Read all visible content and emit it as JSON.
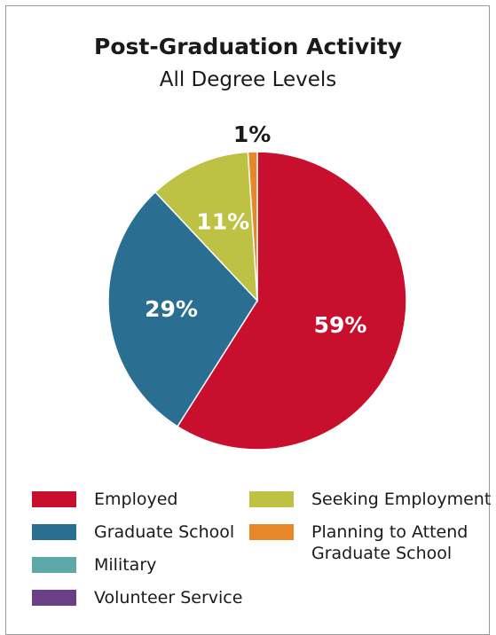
{
  "chart_data": {
    "type": "pie",
    "title": "Post-Graduation Activity",
    "subtitle": "All Degree Levels",
    "slices": [
      {
        "label": "Employed",
        "value": 59,
        "value_label": "59%",
        "color": "#c8102e"
      },
      {
        "label": "Graduate School",
        "value": 29,
        "value_label": "29%",
        "color": "#2a6e91"
      },
      {
        "label": "Military",
        "value": 0,
        "value_label": "",
        "color": "#5fa8a8"
      },
      {
        "label": "Volunteer Service",
        "value": 0,
        "value_label": "",
        "color": "#6b3f86"
      },
      {
        "label": "Seeking Employment",
        "value": 11,
        "value_label": "11%",
        "color": "#bec244"
      },
      {
        "label": "Planning to Attend Graduate School",
        "value": 1,
        "value_label": "1%",
        "color": "#e8872a"
      }
    ],
    "legend": [
      "Employed",
      "Graduate School",
      "Military",
      "Volunteer Service",
      "Seeking Employment",
      "Planning to Attend Graduate School"
    ],
    "legend_placement": "bottom"
  }
}
